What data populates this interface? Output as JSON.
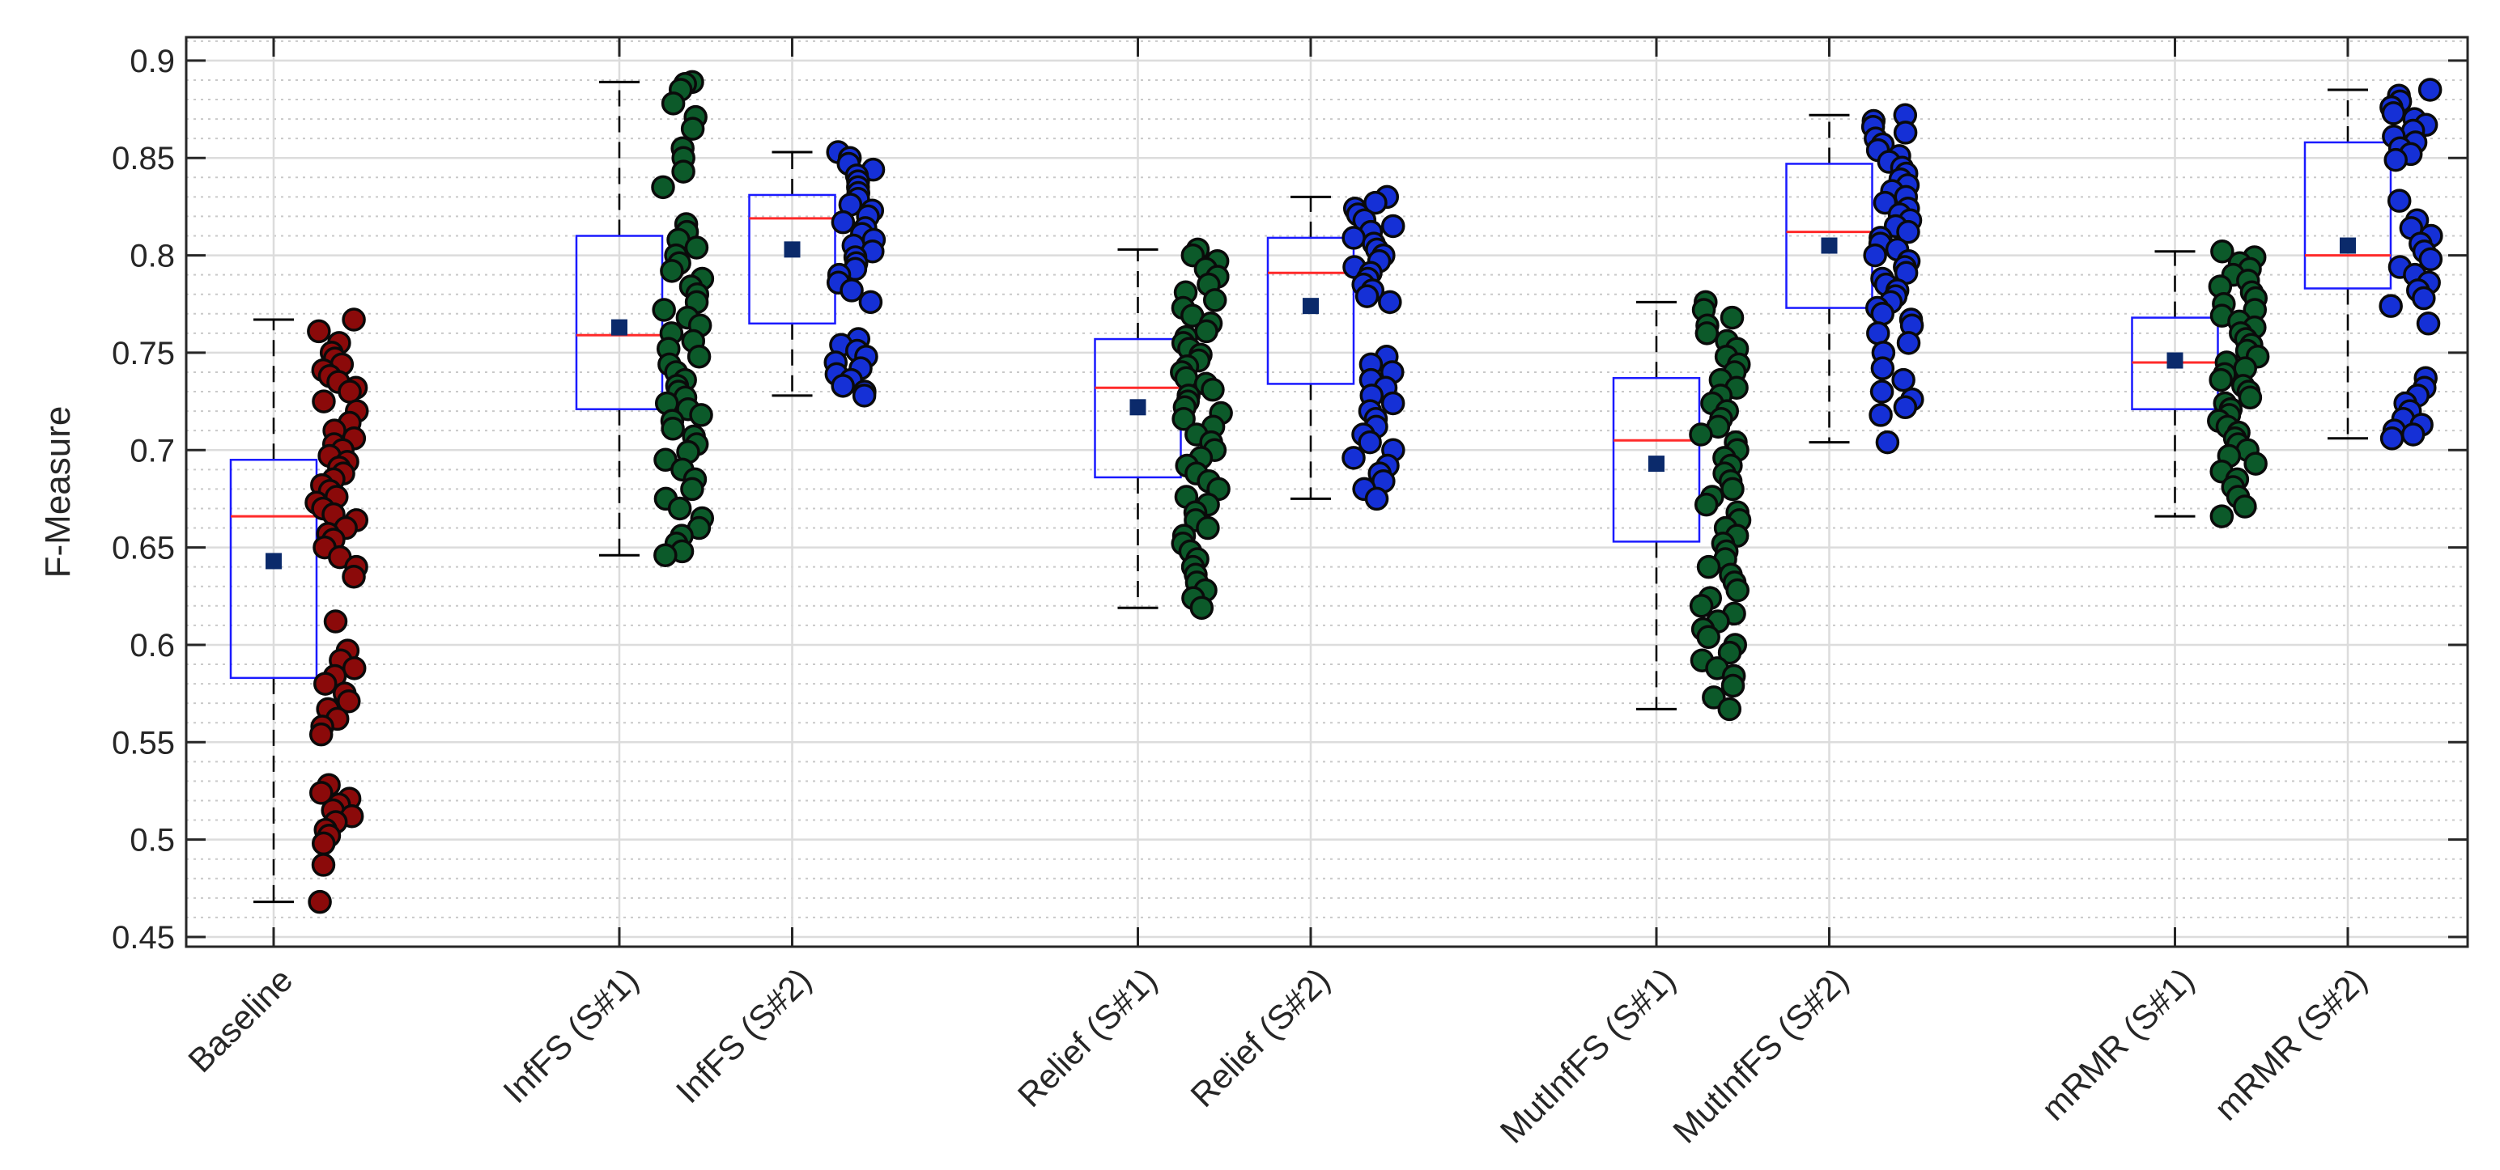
{
  "chart_data": {
    "type": "boxplot",
    "title": "",
    "xlabel": "",
    "ylabel": "F-Measure",
    "ylim": [
      0.445,
      0.912
    ],
    "yticks": [
      0.45,
      0.5,
      0.55,
      0.6,
      0.65,
      0.7,
      0.75,
      0.8,
      0.85,
      0.9
    ],
    "ytick_labels": [
      "0.45",
      "0.5",
      "0.55",
      "0.6",
      "0.65",
      "0.7",
      "0.75",
      "0.8",
      "0.85",
      "0.9"
    ],
    "minor_grid_step": 0.01,
    "grid": true,
    "legend": "none",
    "colors": {
      "box": "#1a1aff",
      "median": "#ff2a2a",
      "mean_marker": "#0b2a6b",
      "whisker": "#000000",
      "baseline_points": "#8b0a0a",
      "s1_points": "#0c5a2a",
      "s2_points": "#1530d6"
    },
    "series": [
      {
        "name": "Baseline",
        "slot": 0,
        "group": "baseline",
        "whisker_low": 0.468,
        "q1": 0.583,
        "median": 0.666,
        "q3": 0.695,
        "whisker_high": 0.767,
        "mean": 0.643,
        "points": [
          0.767,
          0.761,
          0.755,
          0.75,
          0.747,
          0.744,
          0.741,
          0.738,
          0.735,
          0.732,
          0.73,
          0.725,
          0.72,
          0.714,
          0.71,
          0.706,
          0.703,
          0.7,
          0.697,
          0.694,
          0.691,
          0.688,
          0.685,
          0.682,
          0.679,
          0.676,
          0.673,
          0.67,
          0.667,
          0.664,
          0.66,
          0.657,
          0.654,
          0.65,
          0.645,
          0.64,
          0.635,
          0.612,
          0.597,
          0.592,
          0.588,
          0.584,
          0.58,
          0.575,
          0.571,
          0.567,
          0.562,
          0.558,
          0.554,
          0.528,
          0.524,
          0.521,
          0.518,
          0.515,
          0.512,
          0.509,
          0.505,
          0.502,
          0.498,
          0.487,
          0.468
        ]
      },
      {
        "name": "InfFS (S#1)",
        "slot": 2,
        "group": "s1",
        "whisker_low": 0.646,
        "q1": 0.721,
        "median": 0.759,
        "q3": 0.81,
        "whisker_high": 0.889,
        "mean": 0.763,
        "points": [
          0.889,
          0.888,
          0.885,
          0.878,
          0.871,
          0.865,
          0.855,
          0.85,
          0.843,
          0.835,
          0.816,
          0.812,
          0.808,
          0.804,
          0.8,
          0.796,
          0.792,
          0.788,
          0.784,
          0.78,
          0.776,
          0.772,
          0.768,
          0.764,
          0.76,
          0.756,
          0.752,
          0.748,
          0.744,
          0.74,
          0.736,
          0.733,
          0.73,
          0.727,
          0.724,
          0.721,
          0.718,
          0.715,
          0.711,
          0.707,
          0.703,
          0.699,
          0.695,
          0.69,
          0.685,
          0.68,
          0.675,
          0.67,
          0.665,
          0.66,
          0.656,
          0.652,
          0.648,
          0.646
        ]
      },
      {
        "name": "InfFS (S#2)",
        "slot": 3,
        "group": "s2",
        "whisker_low": 0.728,
        "q1": 0.765,
        "median": 0.819,
        "q3": 0.831,
        "whisker_high": 0.853,
        "mean": 0.803,
        "points": [
          0.853,
          0.85,
          0.847,
          0.844,
          0.841,
          0.838,
          0.835,
          0.832,
          0.829,
          0.826,
          0.823,
          0.82,
          0.817,
          0.814,
          0.811,
          0.808,
          0.805,
          0.802,
          0.799,
          0.796,
          0.793,
          0.79,
          0.786,
          0.782,
          0.776,
          0.757,
          0.754,
          0.751,
          0.748,
          0.745,
          0.742,
          0.739,
          0.736,
          0.733,
          0.73,
          0.728
        ]
      },
      {
        "name": "Relief (S#1)",
        "slot": 5,
        "group": "s1",
        "whisker_low": 0.619,
        "q1": 0.686,
        "median": 0.732,
        "q3": 0.757,
        "whisker_high": 0.803,
        "mean": 0.722,
        "points": [
          0.803,
          0.8,
          0.797,
          0.793,
          0.789,
          0.785,
          0.781,
          0.777,
          0.773,
          0.769,
          0.765,
          0.761,
          0.758,
          0.755,
          0.752,
          0.749,
          0.746,
          0.743,
          0.74,
          0.737,
          0.734,
          0.731,
          0.728,
          0.725,
          0.722,
          0.719,
          0.716,
          0.712,
          0.708,
          0.704,
          0.7,
          0.696,
          0.692,
          0.688,
          0.684,
          0.68,
          0.676,
          0.672,
          0.668,
          0.664,
          0.66,
          0.656,
          0.652,
          0.648,
          0.644,
          0.64,
          0.636,
          0.632,
          0.628,
          0.624,
          0.619
        ]
      },
      {
        "name": "Relief (S#2)",
        "slot": 6,
        "group": "s2",
        "whisker_low": 0.675,
        "q1": 0.734,
        "median": 0.791,
        "q3": 0.809,
        "whisker_high": 0.83,
        "mean": 0.774,
        "points": [
          0.83,
          0.827,
          0.824,
          0.821,
          0.818,
          0.815,
          0.812,
          0.809,
          0.806,
          0.803,
          0.8,
          0.797,
          0.794,
          0.791,
          0.788,
          0.785,
          0.782,
          0.779,
          0.776,
          0.748,
          0.744,
          0.74,
          0.736,
          0.732,
          0.728,
          0.724,
          0.72,
          0.716,
          0.712,
          0.708,
          0.704,
          0.7,
          0.696,
          0.692,
          0.688,
          0.684,
          0.68,
          0.675
        ]
      },
      {
        "name": "MutInfFS (S#1)",
        "slot": 8,
        "group": "s1",
        "whisker_low": 0.567,
        "q1": 0.653,
        "median": 0.705,
        "q3": 0.737,
        "whisker_high": 0.776,
        "mean": 0.693,
        "points": [
          0.776,
          0.772,
          0.768,
          0.764,
          0.76,
          0.756,
          0.752,
          0.748,
          0.744,
          0.74,
          0.736,
          0.732,
          0.728,
          0.724,
          0.72,
          0.716,
          0.712,
          0.708,
          0.704,
          0.7,
          0.696,
          0.692,
          0.688,
          0.684,
          0.68,
          0.676,
          0.672,
          0.668,
          0.664,
          0.66,
          0.656,
          0.652,
          0.648,
          0.644,
          0.64,
          0.636,
          0.632,
          0.628,
          0.624,
          0.62,
          0.616,
          0.612,
          0.608,
          0.604,
          0.6,
          0.596,
          0.592,
          0.588,
          0.584,
          0.579,
          0.573,
          0.567
        ]
      },
      {
        "name": "MutInfFS (S#2)",
        "slot": 9,
        "group": "s2",
        "whisker_low": 0.704,
        "q1": 0.773,
        "median": 0.812,
        "q3": 0.847,
        "whisker_high": 0.872,
        "mean": 0.805,
        "points": [
          0.872,
          0.869,
          0.866,
          0.863,
          0.86,
          0.857,
          0.854,
          0.851,
          0.848,
          0.845,
          0.842,
          0.839,
          0.836,
          0.833,
          0.83,
          0.827,
          0.824,
          0.821,
          0.818,
          0.815,
          0.812,
          0.809,
          0.806,
          0.803,
          0.8,
          0.797,
          0.794,
          0.791,
          0.788,
          0.785,
          0.782,
          0.779,
          0.776,
          0.773,
          0.77,
          0.767,
          0.764,
          0.76,
          0.755,
          0.75,
          0.742,
          0.736,
          0.73,
          0.726,
          0.722,
          0.718,
          0.704
        ]
      },
      {
        "name": "mRMR (S#1)",
        "slot": 11,
        "group": "s1",
        "whisker_low": 0.666,
        "q1": 0.721,
        "median": 0.745,
        "q3": 0.768,
        "whisker_high": 0.802,
        "mean": 0.746,
        "points": [
          0.802,
          0.799,
          0.796,
          0.793,
          0.79,
          0.787,
          0.784,
          0.781,
          0.778,
          0.775,
          0.772,
          0.769,
          0.766,
          0.763,
          0.76,
          0.757,
          0.754,
          0.751,
          0.748,
          0.745,
          0.742,
          0.739,
          0.736,
          0.733,
          0.73,
          0.727,
          0.724,
          0.721,
          0.718,
          0.715,
          0.712,
          0.709,
          0.706,
          0.703,
          0.7,
          0.697,
          0.693,
          0.689,
          0.685,
          0.681,
          0.676,
          0.671,
          0.666
        ]
      },
      {
        "name": "mRMR (S#2)",
        "slot": 12,
        "group": "s2",
        "whisker_low": 0.706,
        "q1": 0.783,
        "median": 0.8,
        "q3": 0.858,
        "whisker_high": 0.885,
        "mean": 0.805,
        "points": [
          0.885,
          0.882,
          0.879,
          0.876,
          0.873,
          0.87,
          0.867,
          0.864,
          0.861,
          0.858,
          0.855,
          0.852,
          0.849,
          0.828,
          0.818,
          0.814,
          0.81,
          0.806,
          0.802,
          0.798,
          0.794,
          0.79,
          0.786,
          0.782,
          0.778,
          0.774,
          0.765,
          0.737,
          0.732,
          0.728,
          0.724,
          0.72,
          0.716,
          0.713,
          0.71,
          0.708,
          0.706
        ]
      }
    ]
  }
}
